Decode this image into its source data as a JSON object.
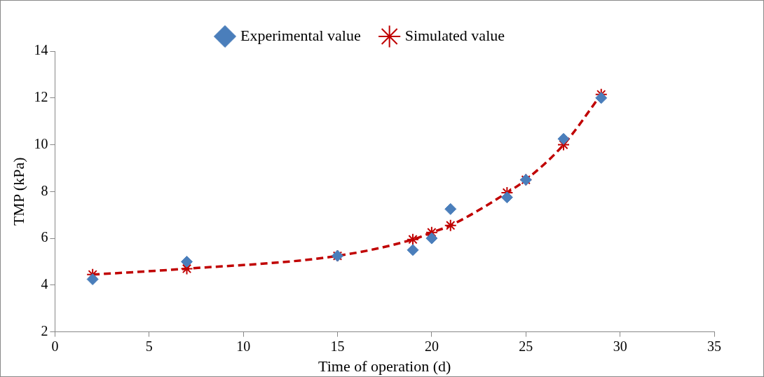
{
  "chart_data": {
    "type": "scatter",
    "xlabel": "Time of operation (d)",
    "ylabel": "TMP (kPa)",
    "xlim": [
      0,
      35
    ],
    "xticks": [
      0,
      5,
      10,
      15,
      20,
      25,
      30,
      35
    ],
    "ylim": [
      2,
      14
    ],
    "yticks": [
      2,
      4,
      6,
      8,
      10,
      12,
      14
    ],
    "grid": false,
    "legend": "top",
    "series": [
      {
        "name": "Experimental value",
        "type": "scatter",
        "color": "#4a7ebb",
        "marker": "diamond",
        "x": [
          2,
          7,
          15,
          19,
          20,
          21,
          24,
          25,
          27,
          29
        ],
        "values": [
          4.25,
          5.0,
          5.25,
          5.5,
          6.0,
          7.25,
          7.75,
          8.5,
          10.25,
          12.0
        ]
      },
      {
        "name": "Simulated value",
        "type": "line",
        "color": "#c00000",
        "marker": "cross",
        "line_style": "dashed",
        "x": [
          2,
          7,
          15,
          19,
          20,
          21,
          24,
          25,
          27,
          29
        ],
        "values": [
          4.45,
          4.7,
          5.25,
          5.95,
          6.25,
          6.55,
          7.95,
          8.5,
          10.0,
          12.15
        ]
      }
    ]
  }
}
